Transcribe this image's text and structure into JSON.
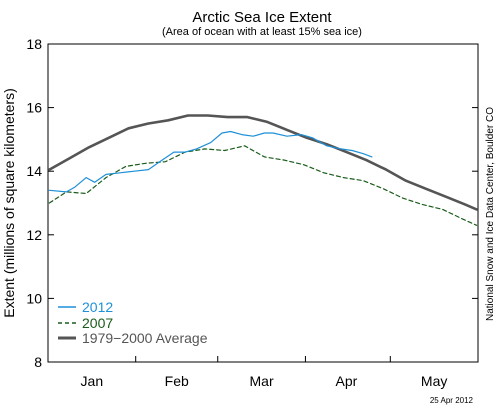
{
  "chart_data": {
    "type": "line",
    "title": "Arctic Sea Ice Extent",
    "subtitle": "(Area of ocean with at least 15% sea ice)",
    "ylabel": "Extent (millions of square kilometers)",
    "xlabel": "",
    "ylim": [
      8,
      18
    ],
    "yticks": [
      8,
      10,
      12,
      14,
      16,
      18
    ],
    "xlim": [
      "2012-01-01",
      "2012-05-31"
    ],
    "month_labels": [
      {
        "label": "Jan",
        "date": "2012-01-16"
      },
      {
        "label": "Feb",
        "date": "2012-02-15"
      },
      {
        "label": "Mar",
        "date": "2012-03-16"
      },
      {
        "label": "Apr",
        "date": "2012-04-15"
      },
      {
        "label": "May",
        "date": "2012-05-16"
      }
    ],
    "grid": false,
    "legend_position": "bottom-left",
    "credit": "National Snow and Ice Data Center, Boulder CO",
    "date_stamp": "25 Apr 2012",
    "series": [
      {
        "name": "2012",
        "color": "#1e90d8",
        "style": "solid",
        "x": [
          "2012-01-01",
          "2012-01-07",
          "2012-01-10",
          "2012-01-14",
          "2012-01-17",
          "2012-01-21",
          "2012-01-26",
          "2012-01-31",
          "2012-02-05",
          "2012-02-09",
          "2012-02-14",
          "2012-02-18",
          "2012-02-22",
          "2012-02-27",
          "2012-03-02",
          "2012-03-05",
          "2012-03-09",
          "2012-03-13",
          "2012-03-17",
          "2012-03-20",
          "2012-03-25",
          "2012-03-30",
          "2012-04-03",
          "2012-04-08",
          "2012-04-13",
          "2012-04-17",
          "2012-04-21",
          "2012-04-24"
        ],
        "values": [
          13.4,
          13.35,
          13.5,
          13.8,
          13.65,
          13.9,
          13.95,
          14.0,
          14.05,
          14.3,
          14.6,
          14.6,
          14.7,
          14.9,
          15.2,
          15.25,
          15.15,
          15.1,
          15.2,
          15.2,
          15.1,
          15.15,
          15.05,
          14.8,
          14.7,
          14.65,
          14.55,
          14.45
        ]
      },
      {
        "name": "2007",
        "color": "#1a5c1a",
        "style": "dashed",
        "x": [
          "2012-01-01",
          "2012-01-07",
          "2012-01-14",
          "2012-01-21",
          "2012-01-28",
          "2012-02-04",
          "2012-02-11",
          "2012-02-18",
          "2012-02-25",
          "2012-03-03",
          "2012-03-10",
          "2012-03-17",
          "2012-03-24",
          "2012-03-31",
          "2012-04-07",
          "2012-04-14",
          "2012-04-21",
          "2012-04-28",
          "2012-05-05",
          "2012-05-12",
          "2012-05-19",
          "2012-05-26",
          "2012-05-31"
        ],
        "values": [
          13.0,
          13.35,
          13.3,
          13.8,
          14.15,
          14.25,
          14.3,
          14.6,
          14.7,
          14.65,
          14.8,
          14.45,
          14.35,
          14.2,
          13.95,
          13.8,
          13.7,
          13.45,
          13.15,
          12.95,
          12.8,
          12.5,
          12.3
        ]
      },
      {
        "name": "1979−2000 Average",
        "color": "#555555",
        "style": "solid",
        "x": [
          "2012-01-01",
          "2012-01-08",
          "2012-01-15",
          "2012-01-22",
          "2012-01-29",
          "2012-02-05",
          "2012-02-12",
          "2012-02-19",
          "2012-02-26",
          "2012-03-04",
          "2012-03-11",
          "2012-03-18",
          "2012-03-25",
          "2012-04-01",
          "2012-04-08",
          "2012-04-15",
          "2012-04-22",
          "2012-04-29",
          "2012-05-06",
          "2012-05-13",
          "2012-05-20",
          "2012-05-27",
          "2012-05-31"
        ],
        "values": [
          14.05,
          14.4,
          14.75,
          15.05,
          15.35,
          15.5,
          15.6,
          15.75,
          15.75,
          15.7,
          15.7,
          15.55,
          15.3,
          15.05,
          14.85,
          14.6,
          14.35,
          14.05,
          13.7,
          13.45,
          13.2,
          12.95,
          12.8
        ]
      }
    ]
  }
}
